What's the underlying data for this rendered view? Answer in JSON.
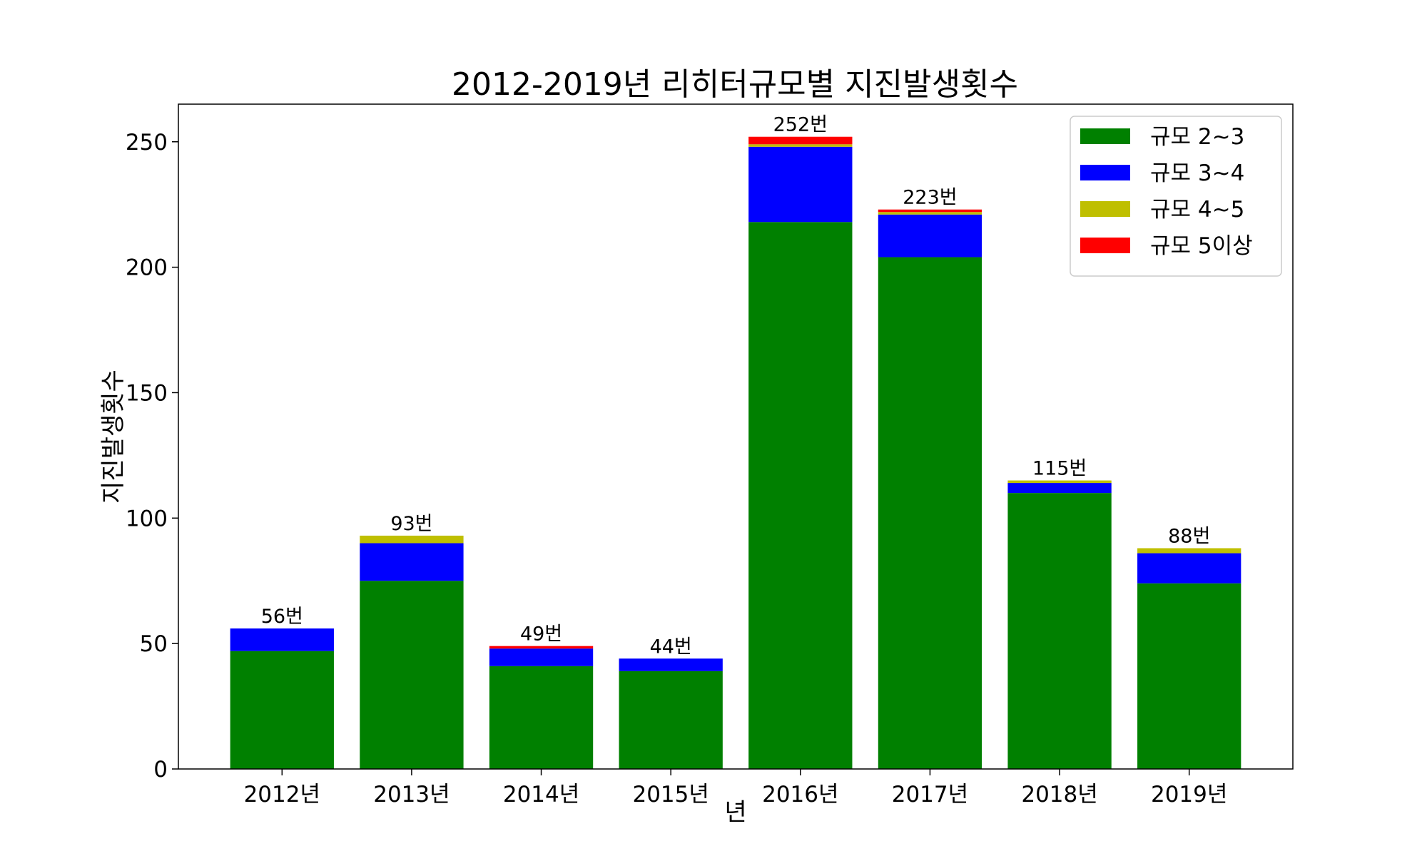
{
  "chart_data": {
    "type": "bar",
    "stacked": true,
    "title": "2012-2019년 리히터규모별 지진발생횟수",
    "xlabel": "년",
    "ylabel": "지진발생횟수",
    "ylim": [
      0,
      265
    ],
    "yticks": [
      0,
      50,
      100,
      150,
      200,
      250
    ],
    "grid": false,
    "legend_position": "top-right",
    "categories": [
      "2012년",
      "2013년",
      "2014년",
      "2015년",
      "2016년",
      "2017년",
      "2018년",
      "2019년"
    ],
    "series": [
      {
        "name": "규모 2~3",
        "color": "#008000",
        "values": [
          47,
          75,
          41,
          39,
          218,
          204,
          110,
          74
        ]
      },
      {
        "name": "규모 3~4",
        "color": "#0000ff",
        "values": [
          9,
          15,
          7,
          5,
          30,
          17,
          4,
          12
        ]
      },
      {
        "name": "규모 4~5",
        "color": "#bfbf00",
        "values": [
          0,
          3,
          0,
          0,
          1,
          1,
          1,
          2
        ]
      },
      {
        "name": "규모 5이상",
        "color": "#ff0000",
        "values": [
          0,
          0,
          1,
          0,
          3,
          1,
          0,
          0
        ]
      }
    ],
    "totals_labels": [
      "56번",
      "93번",
      "49번",
      "44번",
      "252번",
      "223번",
      "115번",
      "88번"
    ]
  }
}
